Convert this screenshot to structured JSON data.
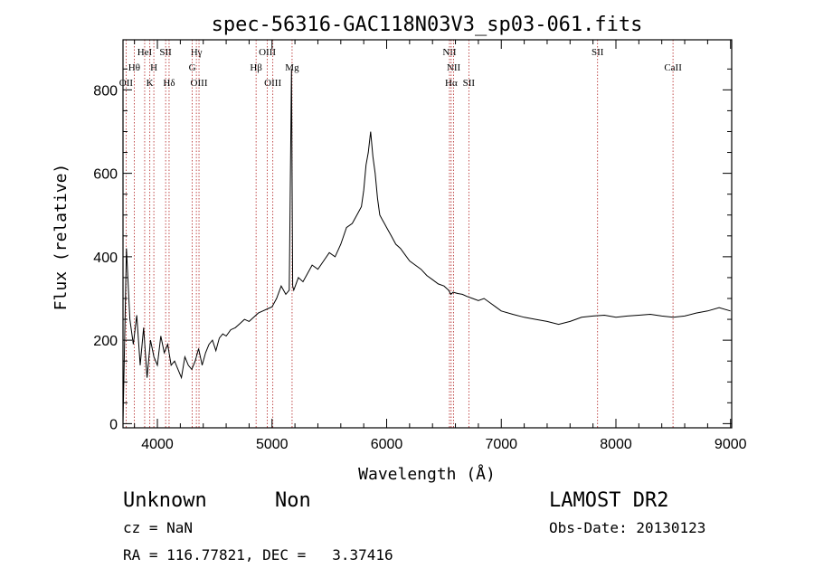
{
  "chart_data": {
    "type": "line",
    "title": "spec-56316-GAC118N03V3_sp03-061.fits",
    "xlabel": "Wavelength (Å)",
    "ylabel": "Flux (relative)",
    "xlim": [
      3700,
      9010
    ],
    "ylim": [
      -10,
      920
    ],
    "x_ticks": [
      4000,
      5000,
      6000,
      7000,
      8000,
      9000
    ],
    "y_ticks": [
      0,
      200,
      400,
      600,
      800
    ],
    "grid": false,
    "series": [
      {
        "x": [
          3700,
          3730,
          3760,
          3790,
          3820,
          3850,
          3880,
          3910,
          3940,
          3970,
          4000,
          4030,
          4060,
          4090,
          4120,
          4150,
          4180,
          4210,
          4240,
          4270,
          4300,
          4330,
          4360,
          4390,
          4420,
          4450,
          4480,
          4510,
          4540,
          4570,
          4600,
          4640,
          4680,
          4720,
          4760,
          4800,
          4840,
          4880,
          4920,
          4960,
          5000,
          5040,
          5080,
          5120,
          5150,
          5170,
          5180,
          5190,
          5230,
          5270,
          5310,
          5350,
          5400,
          5450,
          5500,
          5550,
          5600,
          5650,
          5700,
          5740,
          5780,
          5800,
          5820,
          5840,
          5860,
          5880,
          5900,
          5920,
          5940,
          5960,
          5980,
          6000,
          6040,
          6080,
          6120,
          6160,
          6200,
          6250,
          6300,
          6350,
          6400,
          6450,
          6500,
          6540,
          6560,
          6580,
          6620,
          6660,
          6700,
          6750,
          6800,
          6850,
          6900,
          6950,
          7000,
          7100,
          7200,
          7300,
          7400,
          7500,
          7600,
          7700,
          7800,
          7900,
          8000,
          8100,
          8200,
          8300,
          8400,
          8500,
          8600,
          8700,
          8800,
          8900,
          9000
        ],
        "y": [
          0,
          420,
          250,
          190,
          260,
          140,
          230,
          110,
          200,
          160,
          140,
          210,
          170,
          190,
          140,
          150,
          130,
          110,
          160,
          140,
          130,
          150,
          180,
          140,
          170,
          190,
          200,
          175,
          205,
          215,
          210,
          225,
          230,
          240,
          250,
          245,
          255,
          265,
          270,
          275,
          280,
          300,
          330,
          310,
          320,
          850,
          330,
          320,
          350,
          340,
          360,
          380,
          370,
          390,
          410,
          400,
          430,
          470,
          480,
          500,
          520,
          560,
          620,
          650,
          700,
          640,
          600,
          540,
          500,
          490,
          480,
          470,
          450,
          430,
          420,
          405,
          390,
          380,
          370,
          355,
          345,
          335,
          330,
          320,
          310,
          315,
          312,
          310,
          305,
          300,
          295,
          300,
          290,
          280,
          270,
          262,
          255,
          250,
          245,
          238,
          245,
          255,
          258,
          260,
          255,
          258,
          260,
          262,
          258,
          255,
          258,
          265,
          270,
          278,
          270
        ]
      }
    ],
    "annotations": {
      "header": [
        "Unknown",
        "Non"
      ],
      "survey": "LAMOST DR2",
      "cz": "cz = NaN",
      "obs_date": "Obs-Date: 20130123",
      "coords": "RA = 116.77821, DEC =   3.37416"
    },
    "lines": [
      {
        "label": "OII",
        "wave": 3727,
        "row": 3
      },
      {
        "label": "Hθ",
        "wave": 3798,
        "row": 2
      },
      {
        "label": "HeI",
        "wave": 3889,
        "row": 1
      },
      {
        "label": "K",
        "wave": 3934,
        "row": 3
      },
      {
        "label": "H",
        "wave": 3969,
        "row": 2
      },
      {
        "label": "SII",
        "wave": 4072,
        "row": 1
      },
      {
        "label": "Hδ",
        "wave": 4102,
        "row": 3
      },
      {
        "label": "Hγ",
        "wave": 4340,
        "row": 1
      },
      {
        "label": "G",
        "wave": 4304,
        "row": 2
      },
      {
        "label": "OIII",
        "wave": 4363,
        "row": 3
      },
      {
        "label": "Hβ",
        "wave": 4861,
        "row": 2
      },
      {
        "label": "OIII",
        "wave": 4959,
        "row": 1
      },
      {
        "label": "OIII",
        "wave": 5007,
        "row": 3
      },
      {
        "label": "Mg",
        "wave": 5175,
        "row": 2
      },
      {
        "label": "NII",
        "wave": 6548,
        "row": 1
      },
      {
        "label": "NII",
        "wave": 6584,
        "row": 2
      },
      {
        "label": "Hα",
        "wave": 6563,
        "row": 3
      },
      {
        "label": "SII",
        "wave": 6717,
        "row": 3
      },
      {
        "label": "SII",
        "wave": 7840,
        "row": 1
      },
      {
        "label": "CaII",
        "wave": 8498,
        "row": 2
      }
    ]
  }
}
